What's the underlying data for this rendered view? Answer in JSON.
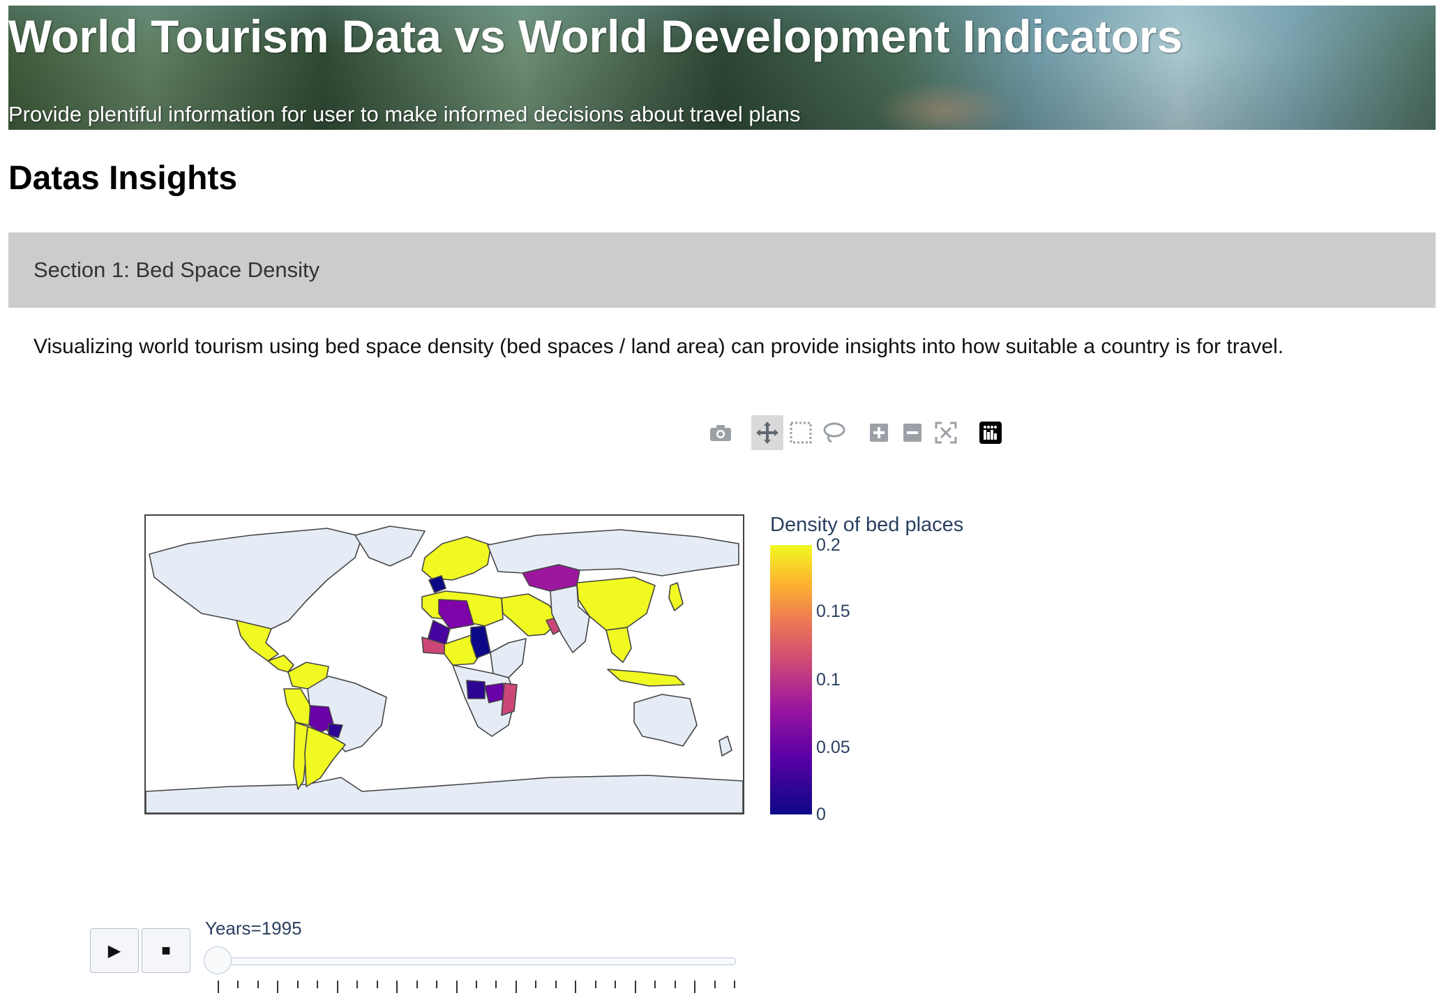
{
  "header": {
    "title": "World Tourism Data vs World Development Indicators",
    "subtitle": "Provide plentiful information for user to make informed decisions about travel plans"
  },
  "page_title": "Datas Insights",
  "section": {
    "label": "Section 1: Bed Space Density",
    "description": "Visualizing world tourism using bed space density (bed spaces / land area) can provide insights into how suitable a country is for travel."
  },
  "modebar": {
    "buttons": [
      "camera-icon",
      "pan-icon",
      "box-select-icon",
      "lasso-select-icon",
      "zoom-in-icon",
      "zoom-out-icon",
      "reset-view-icon",
      "plotly-logo-icon"
    ],
    "active": "pan-icon"
  },
  "chart_data": {
    "type": "choropleth",
    "colorbar": {
      "title": "Density of bed places",
      "range": [
        0,
        0.2
      ],
      "tickvals": [
        0.2,
        0.15,
        0.1,
        0.05,
        0
      ],
      "ticktext": [
        "0.2",
        "0.15",
        "0.1",
        "0.05",
        "0"
      ],
      "colorscale": [
        "#0d0887",
        "#5c01a6",
        "#9c179e",
        "#cc4778",
        "#ed7953",
        "#fdb42f",
        "#f0f921"
      ]
    },
    "animation_frame": "Years",
    "current_frame": "1995",
    "regions": [
      {
        "name": "USA & Canada",
        "value": null
      },
      {
        "name": "Mexico",
        "value": 0.2
      },
      {
        "name": "Central America",
        "value": 0.2
      },
      {
        "name": "Colombia",
        "value": 0.2
      },
      {
        "name": "Venezuela",
        "value": 0.2
      },
      {
        "name": "Brazil",
        "value": null
      },
      {
        "name": "Peru",
        "value": 0.2
      },
      {
        "name": "Bolivia",
        "value": 0.06
      },
      {
        "name": "Paraguay",
        "value": 0.02
      },
      {
        "name": "Chile",
        "value": 0.2
      },
      {
        "name": "Argentina",
        "value": 0.2
      },
      {
        "name": "Europe",
        "value": 0.2
      },
      {
        "name": "France",
        "value": 0.01
      },
      {
        "name": "Morocco",
        "value": 0.2
      },
      {
        "name": "Algeria",
        "value": 0.07
      },
      {
        "name": "Mali",
        "value": 0.03
      },
      {
        "name": "Mauritania",
        "value": 0.2
      },
      {
        "name": "Chad",
        "value": 0.01
      },
      {
        "name": "Egypt",
        "value": 0.2
      },
      {
        "name": "Saudi Arabia",
        "value": 0.2
      },
      {
        "name": "Oman",
        "value": 0.11
      },
      {
        "name": "Angola",
        "value": 0.02
      },
      {
        "name": "Zambia",
        "value": 0.06
      },
      {
        "name": "Mozambique",
        "value": 0.1
      },
      {
        "name": "Tanzania",
        "value": 0.05
      },
      {
        "name": "Kazakhstan",
        "value": 0.07
      },
      {
        "name": "China",
        "value": 0.2
      },
      {
        "name": "Japan",
        "value": 0.2
      },
      {
        "name": "Southeast Asia",
        "value": 0.2
      },
      {
        "name": "Indonesia",
        "value": 0.2
      },
      {
        "name": "Australia",
        "value": null
      }
    ]
  },
  "slider": {
    "label": "Years=1995",
    "play_label": "▶",
    "stop_label": "■",
    "tick_count": 27
  }
}
